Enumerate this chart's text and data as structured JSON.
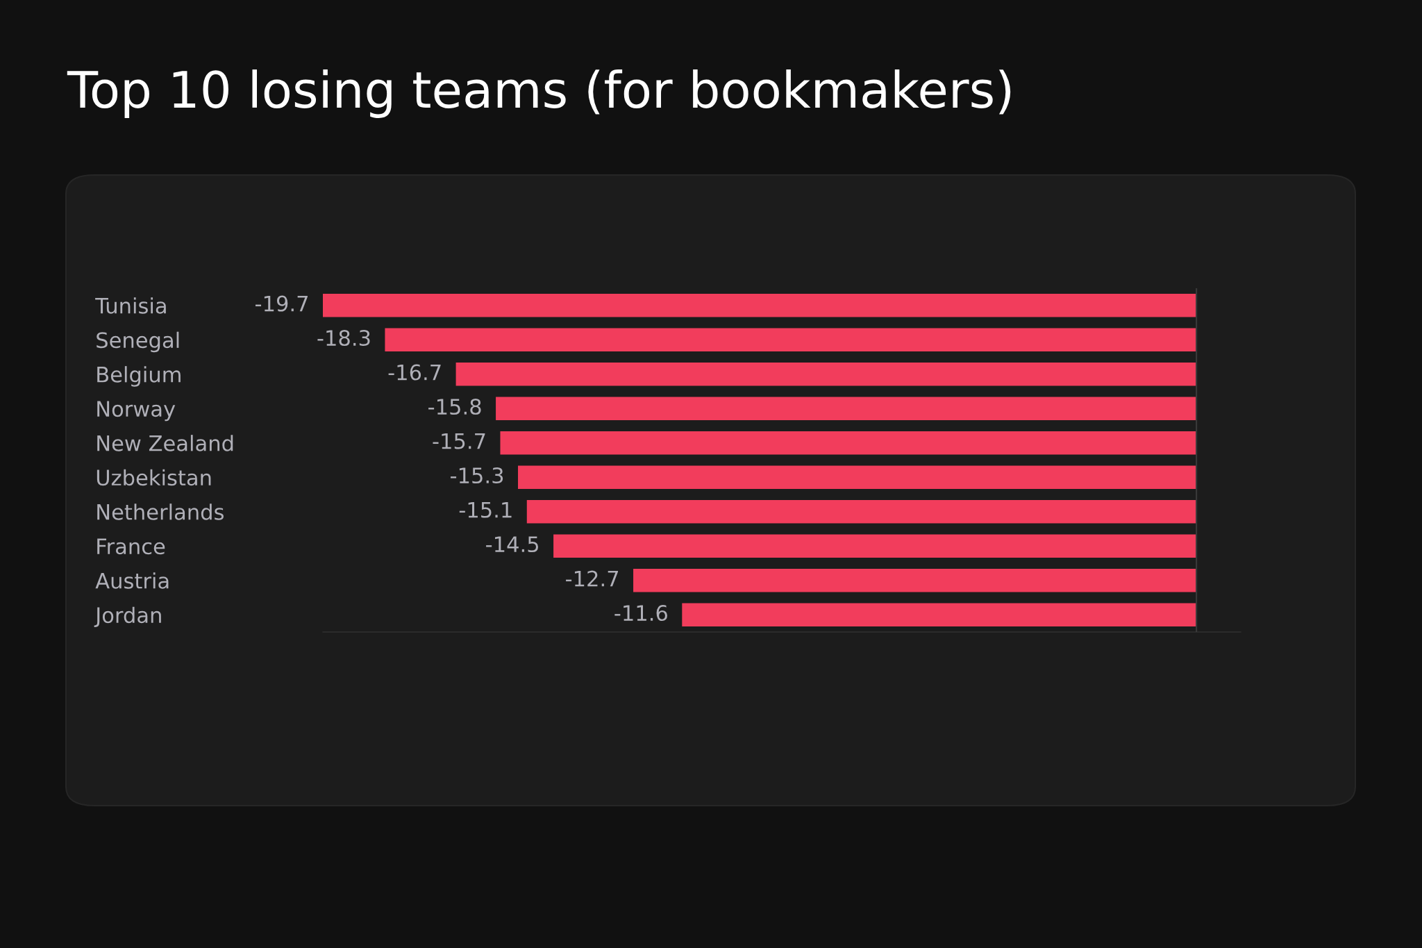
{
  "chart_data": {
    "type": "bar",
    "orientation": "horizontal",
    "title": "Top 10 losing teams (for bookmakers)",
    "categories": [
      "Tunisia",
      "Senegal",
      "Belgium",
      "Norway",
      "New Zealand",
      "Uzbekistan",
      "Netherlands",
      "France",
      "Austria",
      "Jordan"
    ],
    "values": [
      -19.7,
      -18.3,
      -16.7,
      -15.8,
      -15.7,
      -15.3,
      -15.1,
      -14.5,
      -12.7,
      -11.6
    ],
    "color": "#f23d5c",
    "xlim": [
      -19.7,
      1.0
    ],
    "data_labels": true,
    "tick_labels": "y"
  }
}
